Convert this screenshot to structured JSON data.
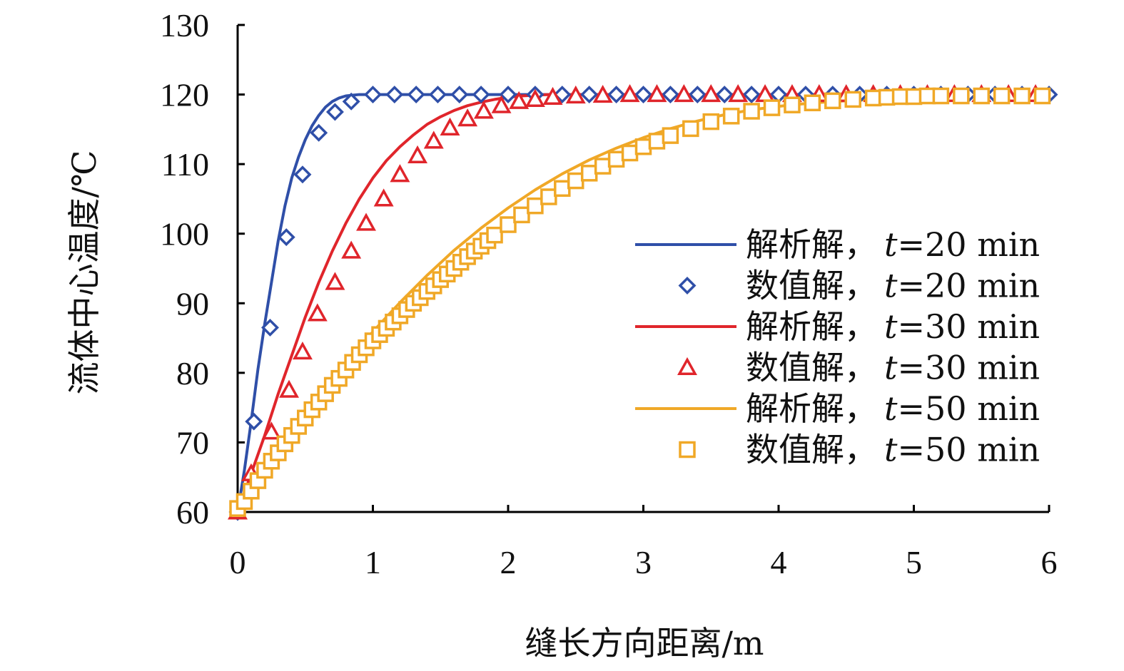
{
  "chart_data": {
    "type": "line",
    "xlabel": "缝长方向距离/m",
    "ylabel": "流体中心温度/℃",
    "xlim": [
      0,
      6
    ],
    "ylim": [
      60,
      130
    ],
    "xticks": [
      "0",
      "1",
      "2",
      "3",
      "4",
      "5",
      "6"
    ],
    "yticks": [
      "60",
      "70",
      "80",
      "90",
      "100",
      "110",
      "120",
      "130"
    ],
    "grid": false,
    "legend_position": "right",
    "series": [
      {
        "name": "解析解，t=20 min",
        "legend_label": "解析解，",
        "legend_time": "t",
        "legend_suffix": "=20 min",
        "kind": "line",
        "color": "#2f4fa8",
        "x": [
          0,
          0.05,
          0.1,
          0.15,
          0.2,
          0.25,
          0.3,
          0.35,
          0.4,
          0.45,
          0.5,
          0.55,
          0.6,
          0.65,
          0.7,
          0.75,
          0.8,
          0.85,
          0.9,
          0.95,
          1.0,
          1.1,
          1.2,
          1.5,
          2,
          3,
          4,
          5,
          6
        ],
        "y": [
          60,
          66,
          73,
          80.5,
          87,
          93,
          99,
          104,
          108,
          111,
          113.5,
          115.5,
          117,
          118.2,
          119,
          119.5,
          119.8,
          119.9,
          120,
          120,
          120,
          120,
          120,
          120,
          120,
          120,
          120,
          120,
          120
        ]
      },
      {
        "name": "数值解，t=20 min",
        "legend_label": "数值解，",
        "legend_time": "t",
        "legend_suffix": "=20 min",
        "kind": "scatter",
        "marker": "diamond",
        "color": "#2f4fa8",
        "x": [
          0,
          0.12,
          0.24,
          0.36,
          0.48,
          0.6,
          0.72,
          0.84,
          1.0,
          1.16,
          1.32,
          1.48,
          1.64,
          1.8,
          2.0,
          2.2,
          2.4,
          2.6,
          2.8,
          3.0,
          3.2,
          3.4,
          3.6,
          3.8,
          4.0,
          4.2,
          4.4,
          4.6,
          4.8,
          5.0,
          5.2,
          5.4,
          5.6,
          5.8,
          6.0
        ],
        "y": [
          60,
          73,
          86.5,
          99.5,
          108.5,
          114.5,
          117.5,
          119,
          120,
          120,
          120,
          120,
          120,
          120,
          120,
          120,
          120,
          120,
          120,
          120,
          120,
          120,
          120,
          120,
          120,
          120,
          120,
          120,
          120,
          120,
          120,
          120,
          120,
          120,
          120
        ]
      },
      {
        "name": "解析解，t=30 min",
        "legend_label": "解析解，",
        "legend_time": "t",
        "legend_suffix": "=30 min",
        "kind": "line",
        "color": "#e0252b",
        "x": [
          0,
          0.1,
          0.2,
          0.3,
          0.4,
          0.5,
          0.6,
          0.7,
          0.8,
          0.9,
          1.0,
          1.1,
          1.2,
          1.3,
          1.4,
          1.5,
          1.6,
          1.7,
          1.8,
          1.9,
          2.0,
          2.1,
          2.2,
          2.3,
          2.4,
          2.6,
          3,
          4,
          5,
          6
        ],
        "y": [
          60,
          65.5,
          71,
          77,
          82.5,
          88,
          93,
          97.5,
          101.5,
          105,
          108,
          110.5,
          112.5,
          114.2,
          115.7,
          116.8,
          117.7,
          118.4,
          118.9,
          119.3,
          119.6,
          119.8,
          119.9,
          120,
          120,
          120,
          120,
          120,
          120,
          120
        ]
      },
      {
        "name": "数值解，t=30 min",
        "legend_label": "数值解，",
        "legend_time": "t",
        "legend_suffix": "=30 min",
        "kind": "scatter",
        "marker": "triangle",
        "color": "#e0252b",
        "x": [
          0,
          0.1,
          0.25,
          0.38,
          0.48,
          0.59,
          0.72,
          0.84,
          0.95,
          1.08,
          1.2,
          1.33,
          1.45,
          1.57,
          1.7,
          1.82,
          1.95,
          2.08,
          2.2,
          2.33,
          2.5,
          2.7,
          2.9,
          3.1,
          3.3,
          3.5,
          3.7,
          3.9,
          4.1,
          4.3,
          4.5,
          4.7,
          4.9,
          5.1,
          5.3,
          5.5,
          5.7,
          5.9
        ],
        "y": [
          60,
          65.5,
          71.5,
          77.5,
          83,
          88.5,
          93,
          97.5,
          101.5,
          105,
          108.5,
          111.2,
          113.3,
          115.2,
          116.5,
          117.6,
          118.4,
          119,
          119.3,
          119.6,
          119.8,
          119.9,
          120,
          120,
          120,
          120,
          120,
          120,
          120,
          120,
          120,
          120,
          120,
          120,
          120,
          120,
          120,
          120
        ]
      },
      {
        "name": "解析解，t=50 min",
        "legend_label": "解析解，",
        "legend_time": "t",
        "legend_suffix": "=50 min",
        "kind": "line",
        "color": "#f0a827",
        "x": [
          0,
          0.2,
          0.4,
          0.6,
          0.8,
          1.0,
          1.2,
          1.4,
          1.6,
          1.8,
          2.0,
          2.2,
          2.4,
          2.6,
          2.8,
          3.0,
          3.2,
          3.4,
          3.6,
          3.8,
          4.0,
          4.2,
          4.4,
          4.6,
          4.8,
          5.0,
          5.2,
          5.4,
          5.6,
          5.8,
          6.0
        ],
        "y": [
          60,
          65.8,
          71.3,
          76.5,
          81.4,
          85.9,
          90.1,
          94.0,
          97.6,
          100.8,
          103.7,
          106.3,
          108.6,
          110.6,
          112.3,
          113.8,
          115.1,
          116.2,
          117.1,
          117.8,
          118.3,
          118.7,
          119.0,
          119.2,
          119.4,
          119.5,
          119.6,
          119.7,
          119.7,
          119.8,
          119.8
        ]
      },
      {
        "name": "数值解，t=50 min",
        "legend_label": "数值解，",
        "legend_time": "t",
        "legend_suffix": "=50 min",
        "kind": "scatter",
        "marker": "square",
        "color": "#f0a827",
        "x": [
          0,
          0.05,
          0.1,
          0.15,
          0.2,
          0.25,
          0.3,
          0.35,
          0.4,
          0.45,
          0.5,
          0.55,
          0.6,
          0.65,
          0.7,
          0.75,
          0.8,
          0.85,
          0.9,
          0.95,
          1.0,
          1.05,
          1.1,
          1.15,
          1.2,
          1.25,
          1.3,
          1.35,
          1.4,
          1.45,
          1.5,
          1.55,
          1.6,
          1.65,
          1.7,
          1.75,
          1.8,
          1.85,
          1.9,
          2.0,
          2.1,
          2.2,
          2.3,
          2.4,
          2.5,
          2.6,
          2.7,
          2.8,
          2.9,
          3.0,
          3.1,
          3.2,
          3.35,
          3.5,
          3.65,
          3.8,
          3.95,
          4.1,
          4.25,
          4.4,
          4.55,
          4.7,
          4.8,
          4.9,
          5.0,
          5.1,
          5.2,
          5.35,
          5.5,
          5.65,
          5.8,
          5.95
        ],
        "y": [
          60.5,
          61.5,
          63,
          64.5,
          66,
          67.3,
          68.5,
          69.8,
          71,
          72.3,
          73.5,
          74.7,
          75.8,
          77,
          78.2,
          79.2,
          80.4,
          81.5,
          82.6,
          83.6,
          84.6,
          85.5,
          86.4,
          87.3,
          88.2,
          89.1,
          90,
          90.8,
          91.7,
          92.5,
          93.4,
          94.2,
          95,
          95.9,
          96.7,
          97.5,
          98.2,
          99,
          99.8,
          101.3,
          102.7,
          104,
          105.3,
          106.5,
          107.6,
          108.7,
          109.7,
          110.7,
          111.6,
          112.5,
          113.3,
          114.1,
          115.1,
          116.1,
          116.9,
          117.6,
          118.1,
          118.5,
          118.8,
          119.1,
          119.3,
          119.5,
          119.6,
          119.7,
          119.7,
          119.8,
          119.8,
          119.8,
          119.8,
          119.8,
          119.8,
          119.8
        ]
      }
    ]
  }
}
